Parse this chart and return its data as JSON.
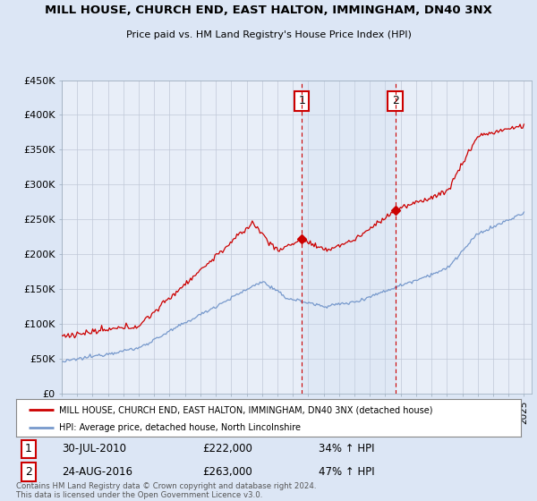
{
  "title": "MILL HOUSE, CHURCH END, EAST HALTON, IMMINGHAM, DN40 3NX",
  "subtitle": "Price paid vs. HM Land Registry's House Price Index (HPI)",
  "ylabel_ticks": [
    "£0",
    "£50K",
    "£100K",
    "£150K",
    "£200K",
    "£250K",
    "£300K",
    "£350K",
    "£400K",
    "£450K"
  ],
  "ytick_values": [
    0,
    50000,
    100000,
    150000,
    200000,
    250000,
    300000,
    350000,
    400000,
    450000
  ],
  "ylim": [
    0,
    450000
  ],
  "xlim_start": 1995.0,
  "xlim_end": 2025.5,
  "bg_color": "#dce6f5",
  "plot_bg_color": "#e8eef8",
  "red_line_color": "#cc0000",
  "blue_line_color": "#7799cc",
  "marker1_year": 2010.58,
  "marker1_value": 222000,
  "marker2_year": 2016.65,
  "marker2_value": 263000,
  "legend_line1": "MILL HOUSE, CHURCH END, EAST HALTON, IMMINGHAM, DN40 3NX (detached house)",
  "legend_line2": "HPI: Average price, detached house, North Lincolnshire",
  "footer": "Contains HM Land Registry data © Crown copyright and database right 2024.\nThis data is licensed under the Open Government Licence v3.0.",
  "red_vline1_x": 2010.58,
  "red_vline2_x": 2016.65
}
